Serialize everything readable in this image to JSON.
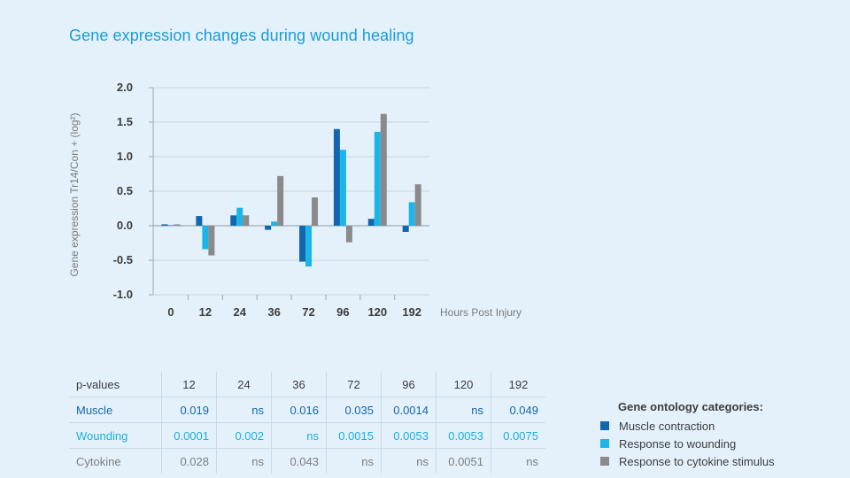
{
  "title": "Gene expression changes during wound healing",
  "chart_data": {
    "type": "bar",
    "categories": [
      "0",
      "12",
      "24",
      "36",
      "72",
      "96",
      "120",
      "192"
    ],
    "series": [
      {
        "name": "Muscle contraction",
        "color": "#1266ad",
        "values": [
          0.02,
          0.14,
          0.15,
          -0.06,
          -0.52,
          1.4,
          0.1,
          -0.09
        ]
      },
      {
        "name": "Response to wounding",
        "color": "#1cb5e8",
        "values": [
          0.01,
          -0.34,
          0.26,
          0.06,
          -0.59,
          1.1,
          1.36,
          0.34
        ]
      },
      {
        "name": "Response to cytokine stimulus",
        "color": "#8a8a8a",
        "values": [
          0.02,
          -0.43,
          0.15,
          0.72,
          0.41,
          -0.24,
          1.62,
          0.6
        ]
      }
    ],
    "yticks": [
      "2.0",
      "1.5",
      "1.0",
      "0.5",
      "0.0",
      "-0.5",
      "-1.0"
    ],
    "ylim": [
      -1.0,
      2.0
    ],
    "xlabel": "Hours Post Injury",
    "ylabel": "Gene expression Tr14/Con + (log²)",
    "grid": true
  },
  "table": {
    "header": [
      "p-values",
      "12",
      "24",
      "36",
      "72",
      "96",
      "120",
      "192"
    ],
    "rows": [
      {
        "label": "Muscle",
        "values": [
          "0.019",
          "ns",
          "0.016",
          "0.035",
          "0.0014",
          "ns",
          "0.049"
        ]
      },
      {
        "label": "Wounding",
        "values": [
          "0.0001",
          "0.002",
          "ns",
          "0.0015",
          "0.0053",
          "0.0053",
          "0.0075"
        ]
      },
      {
        "label": "Cytokine",
        "values": [
          "0.028",
          "ns",
          "0.043",
          "ns",
          "ns",
          "0.0051",
          "ns"
        ]
      }
    ]
  },
  "legend": {
    "title": "Gene ontology categories:",
    "items": [
      {
        "label": "Muscle contraction",
        "color": "#1266ad"
      },
      {
        "label": "Response to wounding",
        "color": "#1cb5e8"
      },
      {
        "label": "Response to cytokine stimulus",
        "color": "#8a8a8a"
      }
    ]
  }
}
